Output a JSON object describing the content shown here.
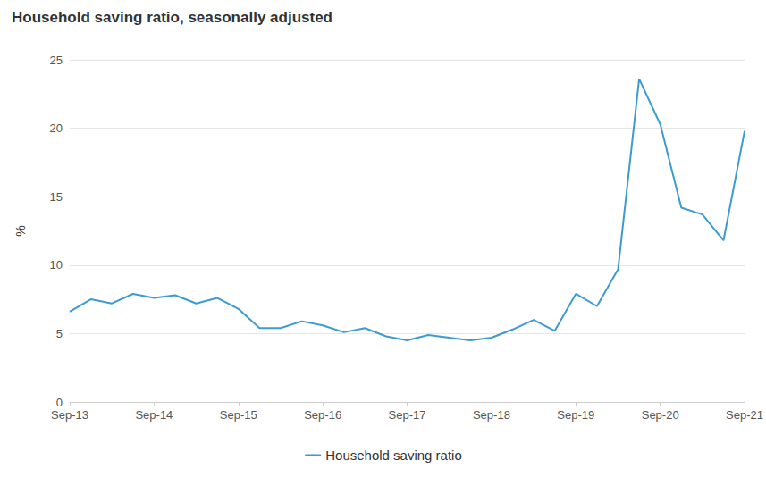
{
  "chart_data": {
    "type": "line",
    "title": "Household saving ratio, seasonally adjusted",
    "y_label": "%",
    "categories": [
      "Sep-13",
      null,
      null,
      null,
      "Sep-14",
      null,
      null,
      null,
      "Sep-15",
      null,
      null,
      null,
      "Sep-16",
      null,
      null,
      null,
      "Sep-17",
      null,
      null,
      null,
      "Sep-18",
      null,
      null,
      null,
      "Sep-19",
      null,
      null,
      null,
      "Sep-20",
      null,
      null,
      null,
      "Sep-21"
    ],
    "series": [
      {
        "name": "Household saving ratio",
        "color": "#3d9bd1",
        "values": [
          6.6,
          7.5,
          7.2,
          7.9,
          7.6,
          7.8,
          7.2,
          7.6,
          6.8,
          5.4,
          5.4,
          5.9,
          5.6,
          5.1,
          5.4,
          4.8,
          4.5,
          4.9,
          4.7,
          4.5,
          4.7,
          5.3,
          6.0,
          5.2,
          7.9,
          7.0,
          9.7,
          23.6,
          20.3,
          14.2,
          13.7,
          11.8,
          19.8
        ]
      }
    ],
    "ylim": [
      0,
      25
    ],
    "yticks": [
      0,
      5,
      10,
      15,
      20,
      25
    ],
    "grid": true,
    "legend": "bottom"
  }
}
